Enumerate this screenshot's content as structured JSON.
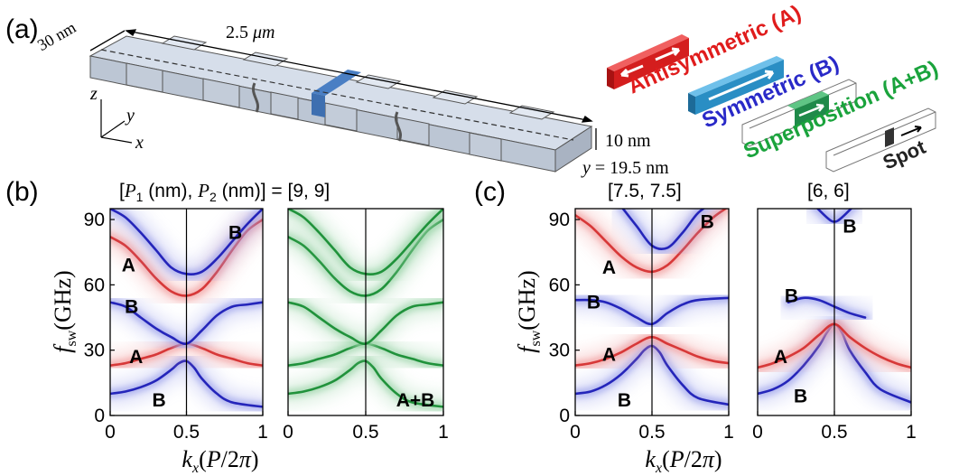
{
  "panel_a": {
    "label": "(a)",
    "width_label": "30 nm",
    "length_label_value": "2.5 ",
    "length_label_unit": "μm",
    "thickness_label": "10 nm",
    "y_label_var": "y",
    "y_label_value": " = 19.5 nm",
    "axis_z": "z",
    "axis_y": "y",
    "axis_x": "x",
    "mode_antisymmetric": "Antisymmetric (A)",
    "mode_symmetric": "Symmetric (B)",
    "mode_superposition": "Superposition (A+B)",
    "spot_label": "Spot",
    "colors": {
      "antisymmetric": "#e01c1c",
      "symmetric": "#2929c8",
      "superposition": "#1aa33c",
      "bar_red": "#d41e1e",
      "bar_blue": "#2a8ec4",
      "bar_green": "#1f8a4a",
      "slab": "#cfd8e6",
      "stripe": "#4a7fc4"
    }
  },
  "panel_b": {
    "label": "(b)",
    "title_open": "[",
    "title_p1": "P",
    "title_sub1": "1",
    "title_nm1": " (nm), ",
    "title_p2": "P",
    "title_sub2": "2",
    "title_nm2": " (nm)] = [9, 9]"
  },
  "panel_c": {
    "label": "(c)",
    "title_left": "[7.5, 7.5]",
    "title_right": "[6, 6]"
  },
  "axis_text": {
    "ylabel_f": "f",
    "ylabel_sub": "sw",
    "ylabel_unit": "(GHz)",
    "xlabel_k": "k",
    "xlabel_sub": "x",
    "xlabel_unit_open": "(",
    "xlabel_unit_P": "P",
    "xlabel_unit_mid": "/2",
    "xlabel_unit_pi": "π",
    "xlabel_unit_close": ")"
  },
  "chart_data": [
    {
      "type": "line",
      "panel": "b-left",
      "xlim": [
        0,
        1
      ],
      "ylim": [
        0,
        95
      ],
      "xticks": [
        "0",
        "0.5",
        "1"
      ],
      "yticks": [
        "0",
        "30",
        "60",
        "90"
      ],
      "mode_labels": [
        {
          "text": "A",
          "x": 0.12,
          "y": 69
        },
        {
          "text": "B",
          "x": 0.82,
          "y": 84
        },
        {
          "text": "B",
          "x": 0.14,
          "y": 50
        },
        {
          "text": "A",
          "x": 0.17,
          "y": 27
        },
        {
          "text": "B",
          "x": 0.32,
          "y": 7
        }
      ],
      "series": [
        {
          "color": "blue",
          "points": [
            [
              0,
              10
            ],
            [
              0.1,
              11
            ],
            [
              0.2,
              13
            ],
            [
              0.3,
              16
            ],
            [
              0.4,
              21
            ],
            [
              0.45,
              24
            ],
            [
              0.5,
              25
            ],
            [
              0.55,
              22
            ],
            [
              0.6,
              17
            ],
            [
              0.7,
              10
            ],
            [
              0.8,
              6
            ],
            [
              1,
              4
            ]
          ]
        },
        {
          "color": "red",
          "points": [
            [
              0,
              23
            ],
            [
              0.1,
              24
            ],
            [
              0.2,
              26
            ],
            [
              0.3,
              28
            ],
            [
              0.4,
              31
            ],
            [
              0.5,
              33
            ],
            [
              0.6,
              31
            ],
            [
              0.7,
              28
            ],
            [
              0.8,
              26
            ],
            [
              0.9,
              24
            ],
            [
              1,
              23
            ]
          ]
        },
        {
          "color": "blue",
          "points": [
            [
              0,
              52
            ],
            [
              0.1,
              50
            ],
            [
              0.2,
              45
            ],
            [
              0.3,
              40
            ],
            [
              0.4,
              36
            ],
            [
              0.5,
              33
            ],
            [
              0.6,
              39
            ],
            [
              0.7,
              46
            ],
            [
              0.8,
              50
            ],
            [
              0.9,
              51
            ],
            [
              1,
              52
            ]
          ]
        },
        {
          "color": "red",
          "points": [
            [
              0,
              82
            ],
            [
              0.1,
              78
            ],
            [
              0.2,
              71
            ],
            [
              0.3,
              63
            ],
            [
              0.4,
              57
            ],
            [
              0.5,
              55
            ],
            [
              0.6,
              58
            ],
            [
              0.7,
              66
            ],
            [
              0.8,
              76
            ],
            [
              0.9,
              85
            ],
            [
              1,
              90
            ]
          ]
        },
        {
          "color": "blue",
          "points": [
            [
              0,
              95
            ],
            [
              0.1,
              91
            ],
            [
              0.2,
              84
            ],
            [
              0.3,
              76
            ],
            [
              0.4,
              68
            ],
            [
              0.5,
              65
            ],
            [
              0.6,
              66
            ],
            [
              0.7,
              72
            ],
            [
              0.8,
              80
            ],
            [
              0.9,
              88
            ],
            [
              1,
              95
            ]
          ]
        }
      ]
    },
    {
      "type": "line",
      "panel": "b-right",
      "xlim": [
        0,
        1
      ],
      "ylim": [
        0,
        95
      ],
      "xticks": [
        "0",
        "0.5",
        "1"
      ],
      "yticks": [],
      "mode_labels": [
        {
          "text": "A+B",
          "x": 0.82,
          "y": 7
        }
      ],
      "series": [
        {
          "color": "green",
          "points": [
            [
              0,
              10
            ],
            [
              0.1,
              11
            ],
            [
              0.2,
              13
            ],
            [
              0.3,
              16
            ],
            [
              0.4,
              21
            ],
            [
              0.45,
              24
            ],
            [
              0.5,
              25
            ],
            [
              0.55,
              22
            ],
            [
              0.6,
              17
            ],
            [
              0.7,
              10
            ],
            [
              0.8,
              6
            ],
            [
              1,
              4
            ]
          ]
        },
        {
          "color": "green",
          "points": [
            [
              0,
              23
            ],
            [
              0.1,
              24
            ],
            [
              0.2,
              26
            ],
            [
              0.3,
              28
            ],
            [
              0.4,
              31
            ],
            [
              0.5,
              33
            ],
            [
              0.6,
              31
            ],
            [
              0.7,
              28
            ],
            [
              0.8,
              26
            ],
            [
              0.9,
              24
            ],
            [
              1,
              23
            ]
          ]
        },
        {
          "color": "green",
          "points": [
            [
              0,
              52
            ],
            [
              0.1,
              50
            ],
            [
              0.2,
              45
            ],
            [
              0.3,
              40
            ],
            [
              0.4,
              36
            ],
            [
              0.5,
              33
            ],
            [
              0.6,
              39
            ],
            [
              0.7,
              46
            ],
            [
              0.8,
              50
            ],
            [
              0.9,
              51
            ],
            [
              1,
              52
            ]
          ]
        },
        {
          "color": "green",
          "points": [
            [
              0,
              82
            ],
            [
              0.1,
              78
            ],
            [
              0.2,
              71
            ],
            [
              0.3,
              63
            ],
            [
              0.4,
              57
            ],
            [
              0.5,
              55
            ],
            [
              0.6,
              58
            ],
            [
              0.7,
              66
            ],
            [
              0.8,
              76
            ],
            [
              0.9,
              85
            ],
            [
              1,
              90
            ]
          ]
        },
        {
          "color": "green",
          "points": [
            [
              0,
              95
            ],
            [
              0.1,
              91
            ],
            [
              0.2,
              84
            ],
            [
              0.3,
              76
            ],
            [
              0.4,
              68
            ],
            [
              0.5,
              65
            ],
            [
              0.6,
              66
            ],
            [
              0.7,
              72
            ],
            [
              0.8,
              80
            ],
            [
              0.9,
              88
            ],
            [
              1,
              95
            ]
          ]
        }
      ]
    },
    {
      "type": "line",
      "panel": "c-left",
      "xlim": [
        0,
        1
      ],
      "ylim": [
        0,
        95
      ],
      "xticks": [
        "0",
        "0.5",
        "1"
      ],
      "yticks": [
        "0",
        "30",
        "60",
        "90"
      ],
      "mode_labels": [
        {
          "text": "A",
          "x": 0.22,
          "y": 68
        },
        {
          "text": "B",
          "x": 0.86,
          "y": 89
        },
        {
          "text": "B",
          "x": 0.12,
          "y": 52
        },
        {
          "text": "A",
          "x": 0.22,
          "y": 28
        },
        {
          "text": "B",
          "x": 0.32,
          "y": 7
        }
      ],
      "series": [
        {
          "color": "blue",
          "points": [
            [
              0,
              10
            ],
            [
              0.1,
              11
            ],
            [
              0.2,
              14
            ],
            [
              0.3,
              19
            ],
            [
              0.4,
              26
            ],
            [
              0.45,
              30
            ],
            [
              0.5,
              32
            ],
            [
              0.55,
              29
            ],
            [
              0.6,
              23
            ],
            [
              0.7,
              14
            ],
            [
              0.8,
              8
            ],
            [
              1,
              5
            ]
          ]
        },
        {
          "color": "red",
          "points": [
            [
              0,
              23
            ],
            [
              0.1,
              24
            ],
            [
              0.2,
              26
            ],
            [
              0.3,
              29
            ],
            [
              0.4,
              33
            ],
            [
              0.5,
              36
            ],
            [
              0.6,
              33
            ],
            [
              0.7,
              30
            ],
            [
              0.8,
              27
            ],
            [
              0.9,
              25
            ],
            [
              1,
              24
            ]
          ]
        },
        {
          "color": "blue",
          "points": [
            [
              0,
              53
            ],
            [
              0.1,
              53
            ],
            [
              0.2,
              52
            ],
            [
              0.3,
              49
            ],
            [
              0.4,
              45
            ],
            [
              0.5,
              42
            ],
            [
              0.6,
              47
            ],
            [
              0.7,
              51
            ],
            [
              0.8,
              53
            ],
            [
              1,
              54
            ]
          ]
        },
        {
          "color": "red",
          "points": [
            [
              0,
              92
            ],
            [
              0.1,
              87
            ],
            [
              0.2,
              80
            ],
            [
              0.3,
              73
            ],
            [
              0.4,
              68
            ],
            [
              0.5,
              66
            ],
            [
              0.6,
              69
            ],
            [
              0.7,
              76
            ],
            [
              0.8,
              84
            ],
            [
              0.9,
              91
            ],
            [
              1,
              96
            ]
          ]
        },
        {
          "color": "blue",
          "points": [
            [
              0.3,
              96
            ],
            [
              0.4,
              87
            ],
            [
              0.5,
              78
            ],
            [
              0.6,
              77
            ],
            [
              0.7,
              84
            ],
            [
              0.8,
              93
            ],
            [
              0.9,
              98
            ]
          ]
        }
      ]
    },
    {
      "type": "line",
      "panel": "c-right",
      "xlim": [
        0,
        1
      ],
      "ylim": [
        0,
        95
      ],
      "xticks": [
        "0",
        "0.5",
        "1"
      ],
      "yticks": [],
      "mode_labels": [
        {
          "text": "B",
          "x": 0.6,
          "y": 87
        },
        {
          "text": "B",
          "x": 0.22,
          "y": 55
        },
        {
          "text": "A",
          "x": 0.15,
          "y": 27
        },
        {
          "text": "B",
          "x": 0.28,
          "y": 9
        }
      ],
      "series": [
        {
          "color": "blue",
          "points": [
            [
              0,
              10
            ],
            [
              0.1,
              12
            ],
            [
              0.2,
              16
            ],
            [
              0.3,
              23
            ],
            [
              0.4,
              32
            ],
            [
              0.45,
              38
            ],
            [
              0.5,
              42
            ],
            [
              0.55,
              38
            ],
            [
              0.6,
              30
            ],
            [
              0.7,
              20
            ],
            [
              0.8,
              12
            ],
            [
              1,
              6
            ]
          ]
        },
        {
          "color": "red",
          "points": [
            [
              0,
              22
            ],
            [
              0.1,
              24
            ],
            [
              0.2,
              27
            ],
            [
              0.3,
              31
            ],
            [
              0.4,
              37
            ],
            [
              0.5,
              42
            ],
            [
              0.6,
              36
            ],
            [
              0.7,
              31
            ],
            [
              0.8,
              27
            ],
            [
              0.9,
              24
            ],
            [
              1,
              22
            ]
          ]
        },
        {
          "color": "blue",
          "points": [
            [
              0.2,
              52
            ],
            [
              0.3,
              54
            ],
            [
              0.4,
              53
            ],
            [
              0.5,
              50
            ],
            [
              0.6,
              47
            ],
            [
              0.7,
              45
            ]
          ]
        },
        {
          "color": "blue",
          "points": [
            [
              0.35,
              98
            ],
            [
              0.45,
              91
            ],
            [
              0.5,
              89
            ],
            [
              0.55,
              91
            ],
            [
              0.65,
              98
            ]
          ]
        }
      ]
    }
  ]
}
